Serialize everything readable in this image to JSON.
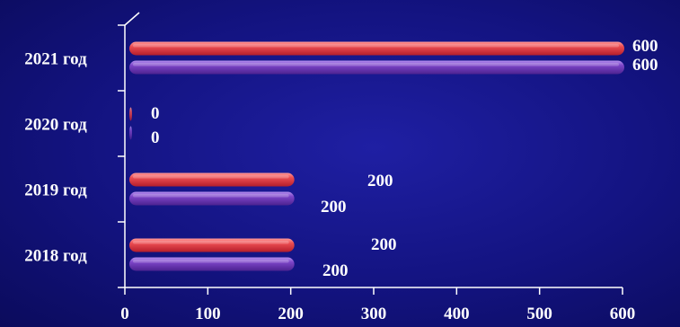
{
  "chart_data": {
    "type": "bar",
    "orientation": "horizontal",
    "categories": [
      "2018 год",
      "2019 год",
      "2020 год",
      "2021 год"
    ],
    "series": [
      {
        "values": [
          200,
          200,
          0,
          600
        ]
      },
      {
        "values": [
          200,
          200,
          0,
          600
        ]
      }
    ],
    "colors": [
      "#e8424a",
      "#7a3fc4"
    ],
    "xticks": [
      "0",
      "100",
      "200",
      "300",
      "400",
      "500",
      "600"
    ],
    "xlim": [
      0,
      600
    ],
    "data_labels": [
      [
        "200",
        "200",
        "0",
        "600"
      ],
      [
        "200",
        "200",
        "0",
        "600"
      ]
    ],
    "grid": false,
    "legend": "none"
  }
}
